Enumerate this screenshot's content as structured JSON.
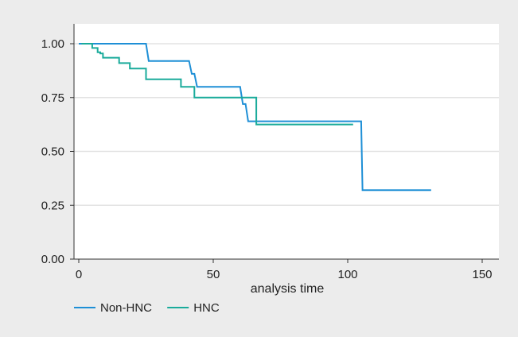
{
  "chart_data": {
    "type": "line",
    "step": true,
    "title": "",
    "xlabel": "analysis time",
    "ylabel": "",
    "xlim": [
      0,
      155
    ],
    "ylim": [
      0,
      1.04
    ],
    "xticks": [
      0,
      50,
      100,
      150
    ],
    "yticks": [
      0.0,
      0.25,
      0.5,
      0.75,
      1.0
    ],
    "ytick_labels": [
      "0.00",
      "0.25",
      "0.50",
      "0.75",
      "1.00"
    ],
    "grid": "horizontal",
    "legend_position": "bottom-left",
    "series": [
      {
        "name": "Non-HNC",
        "color": "#1e8fd6",
        "x": [
          0,
          25,
          25.5,
          26,
          41,
          42,
          43,
          44,
          60,
          61,
          62,
          63,
          105,
          105.5,
          131
        ],
        "y": [
          1.0,
          1.0,
          0.96,
          0.92,
          0.92,
          0.86,
          0.86,
          0.8,
          0.8,
          0.72,
          0.72,
          0.64,
          0.64,
          0.32,
          0.32
        ]
      },
      {
        "name": "HNC",
        "color": "#1aab9b",
        "x": [
          1,
          5,
          5,
          7,
          7,
          8,
          8,
          9,
          9,
          15,
          15,
          19,
          19,
          25,
          25,
          38,
          38,
          43,
          43,
          66,
          66,
          102
        ],
        "y": [
          1.0,
          1.0,
          0.98,
          0.98,
          0.96,
          0.96,
          0.955,
          0.955,
          0.935,
          0.935,
          0.91,
          0.91,
          0.885,
          0.885,
          0.835,
          0.835,
          0.8,
          0.8,
          0.75,
          0.75,
          0.625,
          0.625
        ]
      }
    ]
  }
}
